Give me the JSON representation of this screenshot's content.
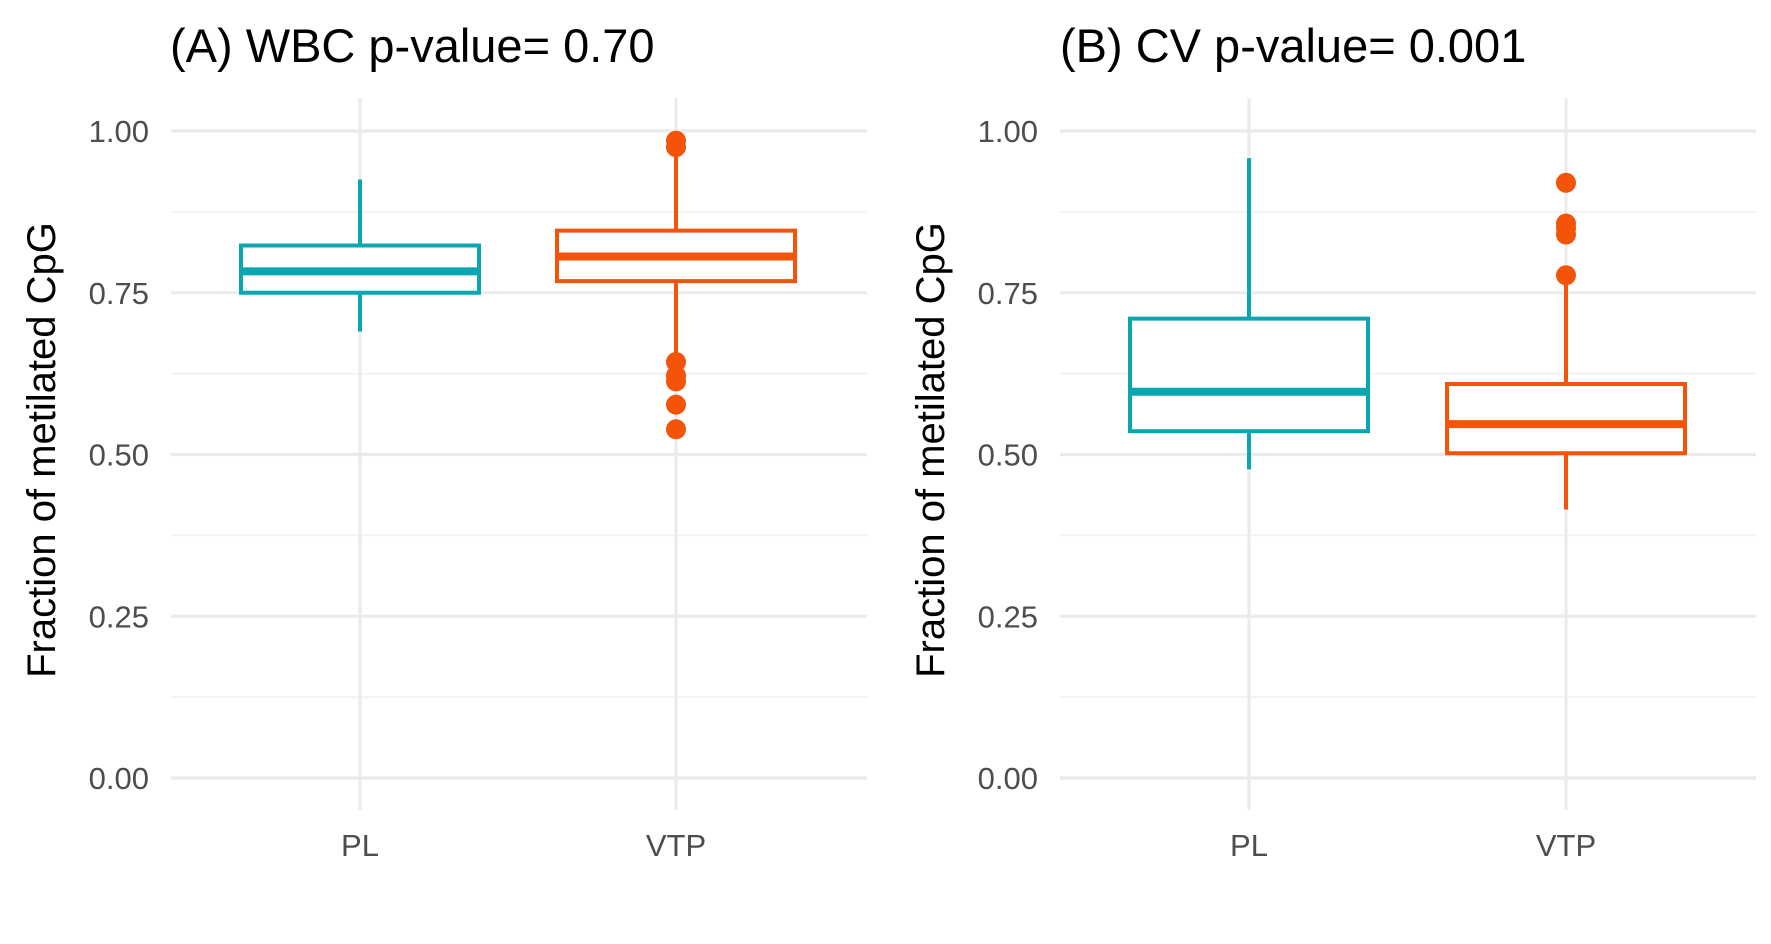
{
  "chart_data": [
    {
      "type": "box",
      "title": "(A) WBC  p-value= 0.70",
      "xlabel": "",
      "ylabel": "Fraction of metilated CpG",
      "ylim": [
        0,
        1
      ],
      "yticks": [
        "0.00",
        "0.25",
        "0.50",
        "0.75",
        "1.00"
      ],
      "categories": [
        "PL",
        "VTP"
      ],
      "grid": true,
      "legend": "none",
      "boxes": [
        {
          "category": "PL",
          "color": "#0BA7B0",
          "whisker_low": 0.69,
          "q1": 0.75,
          "median": 0.783,
          "q3": 0.823,
          "whisker_high": 0.925,
          "outliers": []
        },
        {
          "category": "VTP",
          "color": "#F4540A",
          "whisker_low": 0.65,
          "q1": 0.768,
          "median": 0.806,
          "q3": 0.846,
          "whisker_high": 0.96,
          "outliers": [
            0.985,
            0.975,
            0.643,
            0.622,
            0.613,
            0.577,
            0.539
          ]
        }
      ]
    },
    {
      "type": "box",
      "title": "(B) CV  p-value= 0.001",
      "xlabel": "",
      "ylabel": "Fraction of metilated CpG",
      "ylim": [
        0,
        1
      ],
      "yticks": [
        "0.00",
        "0.25",
        "0.50",
        "0.75",
        "1.00"
      ],
      "categories": [
        "PL",
        "VTP"
      ],
      "grid": true,
      "legend": "none",
      "boxes": [
        {
          "category": "PL",
          "color": "#0BA7B0",
          "whisker_low": 0.477,
          "q1": 0.536,
          "median": 0.597,
          "q3": 0.71,
          "whisker_high": 0.958,
          "outliers": []
        },
        {
          "category": "VTP",
          "color": "#F4540A",
          "whisker_low": 0.415,
          "q1": 0.502,
          "median": 0.547,
          "q3": 0.609,
          "whisker_high": 0.77,
          "outliers": [
            0.92,
            0.857,
            0.85,
            0.84,
            0.777
          ]
        }
      ]
    }
  ]
}
